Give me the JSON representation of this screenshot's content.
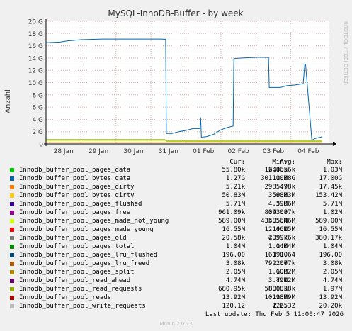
{
  "chart_data": {
    "type": "line",
    "title": "MySQL-InnoDB-Buffer - by week",
    "ylabel": "Anzahl",
    "watermark": "RRDTOOL / TOBI OETIKER",
    "ylim": [
      0,
      20
    ],
    "y_ticks": [
      "0",
      "2 G",
      "4 G",
      "6 G",
      "8 G",
      "10 G",
      "12 G",
      "14 G",
      "16 G",
      "18 G",
      "20 G"
    ],
    "x_ticks": [
      "28 Jan",
      "29 Jan",
      "30 Jan",
      "31 Jan",
      "01 Feb",
      "02 Feb",
      "03 Feb",
      "04 Feb"
    ],
    "x_range_days": [
      0,
      8.1
    ],
    "series": [
      {
        "name": "Innodb_buffer_pool_bytes_data",
        "color": "#0066b3",
        "points": [
          [
            0,
            16.5
          ],
          [
            0.4,
            16.6
          ],
          [
            0.6,
            16.8
          ],
          [
            1,
            17.0
          ],
          [
            1.6,
            17.1
          ],
          [
            2.5,
            17.1
          ],
          [
            3.3,
            17.1
          ],
          [
            3.42,
            17.05
          ],
          [
            3.44,
            1.7
          ],
          [
            3.6,
            1.7
          ],
          [
            3.8,
            2.0
          ],
          [
            4.0,
            2.2
          ],
          [
            4.2,
            2.5
          ],
          [
            4.4,
            2.5
          ],
          [
            4.42,
            4.3
          ],
          [
            4.44,
            1.1
          ],
          [
            4.6,
            1.2
          ],
          [
            4.8,
            1.6
          ],
          [
            5.0,
            2.3
          ],
          [
            5.2,
            2.7
          ],
          [
            5.35,
            2.9
          ],
          [
            5.37,
            13.9
          ],
          [
            5.6,
            14.0
          ],
          [
            6.0,
            14.1
          ],
          [
            6.36,
            14.1
          ],
          [
            6.38,
            9.2
          ],
          [
            6.7,
            9.2
          ],
          [
            6.9,
            9.5
          ],
          [
            7.1,
            9.6
          ],
          [
            7.35,
            9.8
          ],
          [
            7.4,
            13.0
          ],
          [
            7.42,
            13.0
          ],
          [
            7.6,
            0.6
          ],
          [
            7.7,
            0.9
          ],
          [
            7.85,
            1.1
          ],
          [
            7.9,
            1.2
          ]
        ]
      },
      {
        "name": "Innodb_buffer_pool_pages_made_not_young",
        "color": "#ccff00",
        "points": [
          [
            0,
            0.55
          ],
          [
            7.9,
            0.55
          ]
        ]
      },
      {
        "name": "Innodb_buffer_pool_pages_lru_freed",
        "color": "#cc7a00",
        "points": [
          [
            0,
            0.25
          ],
          [
            7.9,
            0.25
          ]
        ]
      },
      {
        "name": "Innodb_buffer_pool_read_requests",
        "color": "#8fa000",
        "points": [
          [
            0,
            0.7
          ],
          [
            3.4,
            0.7
          ],
          [
            3.45,
            0.45
          ],
          [
            7.9,
            0.45
          ]
        ]
      }
    ]
  },
  "legend": {
    "headers": {
      "cur": "Cur:",
      "min": "Min:",
      "avg": "Avg:",
      "max": "Max:"
    },
    "rows": [
      {
        "name": "Innodb_buffer_pool_pages_data",
        "color": "#00cc00",
        "cur": "55.80k",
        "min": "12.46k",
        "avg": "649.56k",
        "max": "1.03M"
      },
      {
        "name": "Innodb_buffer_pool_bytes_data",
        "color": "#0066b3",
        "cur": "1.27G",
        "min": "301.00M",
        "avg": "11.38G",
        "max": "17.00G"
      },
      {
        "name": "Innodb_buffer_pool_pages_dirty",
        "color": "#ff8000",
        "cur": "5.21k",
        "min": "298.47",
        "avg": "5.98k",
        "max": "17.45k"
      },
      {
        "name": "Innodb_buffer_pool_bytes_dirty",
        "color": "#ffcc00",
        "cur": "50.83M",
        "min": "3.68M",
        "avg": "59.83M",
        "max": "153.42M"
      },
      {
        "name": "Innodb_buffer_pool_pages_flushed",
        "color": "#330099",
        "cur": "5.71M",
        "min": "4.39M",
        "avg": "5.06M",
        "max": "5.71M"
      },
      {
        "name": "Innodb_buffer_pool_pages_free",
        "color": "#990099",
        "cur": "961.09k",
        "min": "809.08",
        "avg": "343.97k",
        "max": "1.02M"
      },
      {
        "name": "Innodb_buffer_pool_pages_made_not_young",
        "color": "#ccff00",
        "cur": "589.00M",
        "min": "435.56M",
        "avg": "485.46M",
        "max": "589.00M"
      },
      {
        "name": "Innodb_buffer_pool_pages_made_young",
        "color": "#ff0000",
        "cur": "16.55M",
        "min": "12.06M",
        "avg": "14.15M",
        "max": "16.55M"
      },
      {
        "name": "Innodb_buffer_pool_pages_old",
        "color": "#808080",
        "cur": "20.58k",
        "min": "4.59k",
        "avg": "239.76k",
        "max": "380.17k"
      },
      {
        "name": "Innodb_buffer_pool_pages_total",
        "color": "#008f00",
        "cur": "1.04M",
        "min": "1.04M",
        "avg": "1.04M",
        "max": "1.04M"
      },
      {
        "name": "Innodb_buffer_pool_pages_lru_flushed",
        "color": "#00487d",
        "cur": "196.00",
        "min": "160.00",
        "avg": "191.64",
        "max": "196.00"
      },
      {
        "name": "Innodb_buffer_pool_pages_lru_freed",
        "color": "#b35a00",
        "cur": "3.08k",
        "min": "792.00",
        "avg": "2.77k",
        "max": "3.08k"
      },
      {
        "name": "Innodb_buffer_pool_pages_split",
        "color": "#b38f00",
        "cur": "2.05M",
        "min": "1.60M",
        "avg": "1.82M",
        "max": "2.05M"
      },
      {
        "name": "Innodb_buffer_pool_read_ahead",
        "color": "#6b006b",
        "cur": "4.74M",
        "min": "3.79M",
        "avg": "4.12M",
        "max": "4.74M"
      },
      {
        "name": "Innodb_buffer_pool_read_requests",
        "color": "#8fb300",
        "cur": "680.95k",
        "min": "58.68k",
        "avg": "880.38k",
        "max": "1.97M"
      },
      {
        "name": "Innodb_buffer_pool_reads",
        "color": "#b30000",
        "cur": "13.92M",
        "min": "10.98M",
        "avg": "11.99M",
        "max": "13.92M"
      },
      {
        "name": "Innodb_buffer_pool_write_requests",
        "color": "#bebebe",
        "cur": "120.12",
        "min": "1.25",
        "avg": "226.32",
        "max": "20.20k"
      }
    ]
  },
  "footer": {
    "last_update": "Last update:  Thu Feb  5 11:00:47 2026",
    "munin_version": "Munin 2.0.73"
  }
}
